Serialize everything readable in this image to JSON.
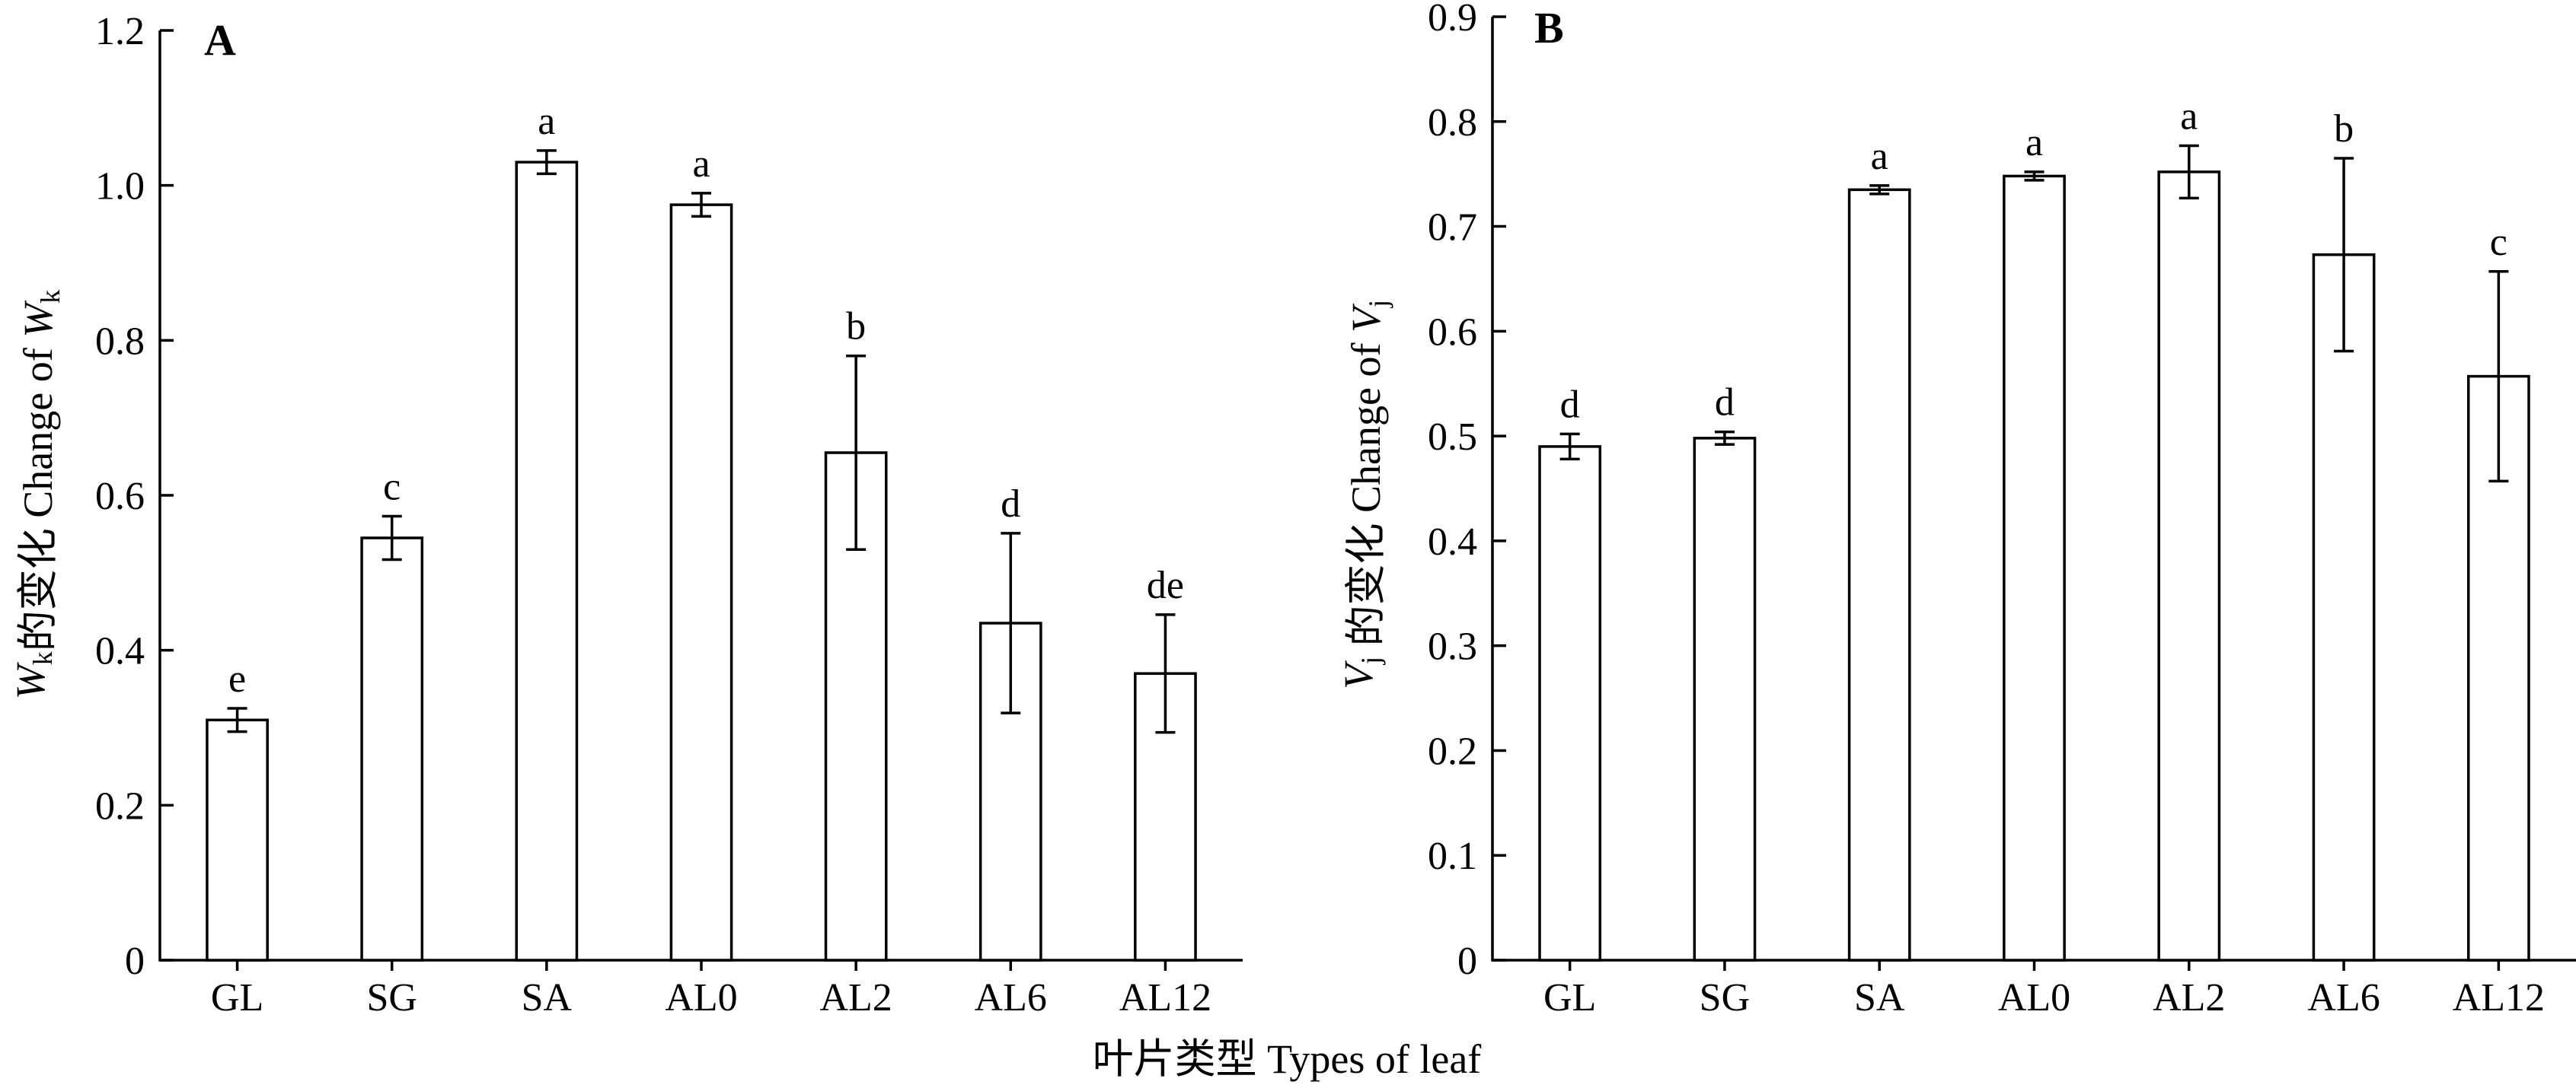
{
  "xlabel": "叶片类型 Types of leaf",
  "chart_data": [
    {
      "type": "bar",
      "panel_label": "A",
      "ylabel": {
        "var": "W",
        "sub": "k",
        "mid": "的变化 Change of ",
        "var2": "W",
        "sub2": "k"
      },
      "ylim": [
        0,
        1.2
      ],
      "yticks": [
        0,
        0.2,
        0.4,
        0.6,
        0.8,
        1.0,
        1.2
      ],
      "ytick_labels": [
        "0",
        "0.2",
        "0.4",
        "0.6",
        "0.8",
        "1.0",
        "1.2"
      ],
      "categories": [
        "GL",
        "SG",
        "SA",
        "AL0",
        "AL2",
        "AL6",
        "AL12"
      ],
      "values": [
        0.31,
        0.545,
        1.03,
        0.975,
        0.655,
        0.435,
        0.37
      ],
      "errors": [
        0.015,
        0.028,
        0.015,
        0.015,
        0.125,
        0.116,
        0.076
      ],
      "significance": [
        "e",
        "c",
        "a",
        "a",
        "b",
        "d",
        "de"
      ]
    },
    {
      "type": "bar",
      "panel_label": "B",
      "ylabel": {
        "var": "V",
        "sub": "j",
        "mid": " 的变化 Change of ",
        "var2": "V",
        "sub2": "j"
      },
      "ylim": [
        0,
        0.9
      ],
      "yticks": [
        0,
        0.1,
        0.2,
        0.3,
        0.4,
        0.5,
        0.6,
        0.7,
        0.8,
        0.9
      ],
      "ytick_labels": [
        "0",
        "0.1",
        "0.2",
        "0.3",
        "0.4",
        "0.5",
        "0.6",
        "0.7",
        "0.8",
        "0.9"
      ],
      "categories": [
        "GL",
        "SG",
        "SA",
        "AL0",
        "AL2",
        "AL6",
        "AL12"
      ],
      "values": [
        0.49,
        0.498,
        0.735,
        0.748,
        0.752,
        0.673,
        0.557
      ],
      "errors": [
        0.012,
        0.006,
        0.004,
        0.004,
        0.025,
        0.092,
        0.1
      ],
      "significance": [
        "d",
        "d",
        "a",
        "a",
        "a",
        "b",
        "c"
      ]
    }
  ]
}
